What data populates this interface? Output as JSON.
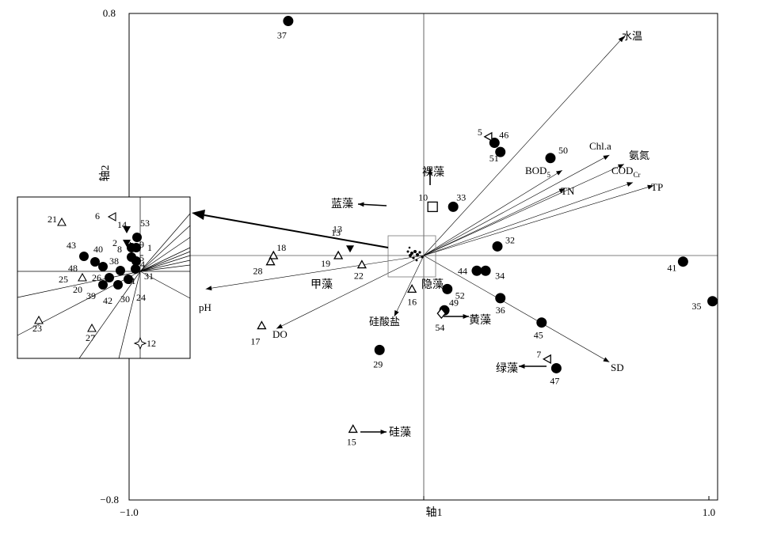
{
  "chart_data": {
    "type": "scatter",
    "title": "",
    "xlabel": "轴1",
    "ylabel": "轴2",
    "xlim": [
      -1.0,
      1.0
    ],
    "ylim": [
      -0.8,
      0.8
    ],
    "x_tick_labels": [
      "−1.0",
      "1.0"
    ],
    "y_tick_labels": [
      "0.8",
      "−0.8"
    ],
    "sites_circle": [
      {
        "label": "37",
        "x": -0.46,
        "y": 0.77
      },
      {
        "label": "46",
        "x": 0.24,
        "y": 0.37
      },
      {
        "label": "51",
        "x": 0.26,
        "y": 0.34
      },
      {
        "label": "50",
        "x": 0.43,
        "y": 0.32
      },
      {
        "label": "33",
        "x": 0.1,
        "y": 0.16
      },
      {
        "label": "32",
        "x": 0.25,
        "y": 0.03
      },
      {
        "label": "41",
        "x": 0.88,
        "y": -0.02
      },
      {
        "label": "44",
        "x": 0.18,
        "y": -0.05
      },
      {
        "label": "34",
        "x": 0.21,
        "y": -0.05
      },
      {
        "label": "52",
        "x": 0.08,
        "y": -0.11
      },
      {
        "label": "36",
        "x": 0.26,
        "y": -0.14
      },
      {
        "label": "35",
        "x": 0.98,
        "y": -0.15
      },
      {
        "label": "49",
        "x": 0.07,
        "y": -0.18
      },
      {
        "label": "45",
        "x": 0.4,
        "y": -0.22
      },
      {
        "label": "29",
        "x": -0.15,
        "y": -0.31
      },
      {
        "label": "47",
        "x": 0.45,
        "y": -0.37
      }
    ],
    "sites_triangle": [
      {
        "label": "18",
        "x": -0.51,
        "y": 0.0
      },
      {
        "label": "28",
        "x": -0.52,
        "y": -0.02
      },
      {
        "label": "19",
        "x": -0.29,
        "y": 0.0
      },
      {
        "label": "22",
        "x": -0.21,
        "y": -0.03
      },
      {
        "label": "16",
        "x": -0.04,
        "y": -0.11
      },
      {
        "label": "17",
        "x": -0.55,
        "y": -0.23
      },
      {
        "label": "15",
        "x": -0.24,
        "y": -0.57
      }
    ],
    "sites_other": [
      {
        "label": "13",
        "marker": "triangle-down",
        "x": -0.25,
        "y": 0.02
      },
      {
        "label": "10",
        "marker": "square",
        "x": 0.03,
        "y": 0.16
      },
      {
        "label": "54",
        "marker": "diamond",
        "x": 0.06,
        "y": -0.19
      },
      {
        "label": "5",
        "marker": "triangle-left",
        "x": 0.22,
        "y": 0.39
      },
      {
        "label": "7",
        "marker": "triangle-left",
        "x": 0.42,
        "y": -0.34
      }
    ],
    "environmental_arrows": [
      {
        "name": "水温",
        "x": 0.68,
        "y": 0.72
      },
      {
        "name": "Chl.a",
        "x": 0.63,
        "y": 0.33
      },
      {
        "name": "氨氮",
        "x": 0.68,
        "y": 0.3
      },
      {
        "name": "BOD5",
        "x": 0.47,
        "y": 0.28
      },
      {
        "name": "TN",
        "x": 0.48,
        "y": 0.22
      },
      {
        "name": "CODCr",
        "x": 0.71,
        "y": 0.24
      },
      {
        "name": "TP",
        "x": 0.78,
        "y": 0.23
      },
      {
        "name": "SD",
        "x": 0.63,
        "y": -0.35
      },
      {
        "name": "pH",
        "x": -0.74,
        "y": -0.11
      },
      {
        "name": "DO",
        "x": -0.5,
        "y": -0.24
      },
      {
        "name": "硅酸盐",
        "x": -0.1,
        "y": -0.2
      }
    ],
    "phyla": [
      {
        "name": "裸藻",
        "x": 0.0,
        "y": 0.25
      },
      {
        "name": "蓝藻",
        "x": -0.22,
        "y": 0.17
      },
      {
        "name": "甲藻",
        "x": -0.35,
        "y": -0.06
      },
      {
        "name": "隐藻",
        "x": 0.0,
        "y": -0.06
      },
      {
        "name": "黄藻",
        "x": 0.17,
        "y": -0.2
      },
      {
        "name": "绿藻",
        "x": 0.32,
        "y": -0.37
      },
      {
        "name": "硅藻",
        "x": -0.14,
        "y": -0.58
      }
    ],
    "inset": {
      "title": "",
      "labels": [
        "21",
        "6",
        "14",
        "53",
        "2",
        "3",
        "9",
        "1",
        "8",
        "5",
        "43",
        "40",
        "48",
        "38",
        "4",
        "26",
        "11",
        "25",
        "31",
        "20",
        "39",
        "42",
        "30",
        "24",
        "23",
        "27",
        "12"
      ]
    }
  },
  "env_text": {
    "water_temp": "水温",
    "chla": "Chl.a",
    "ammonia": "氨氮",
    "bod": "BOD",
    "bod_sub": "5",
    "tn": "TN",
    "cod": "COD",
    "cod_sub": "Cr",
    "tp": "TP",
    "sd": "SD",
    "ph": "pH",
    "do": "DO",
    "silicate": "硅酸盐"
  },
  "phyla_text": {
    "euglena": "裸藻",
    "cyano": "蓝藻",
    "dino": "甲藻",
    "crypto": "隐藻",
    "xantho": "黄藻",
    "chloro": "绿藻",
    "diatom": "硅藻"
  }
}
